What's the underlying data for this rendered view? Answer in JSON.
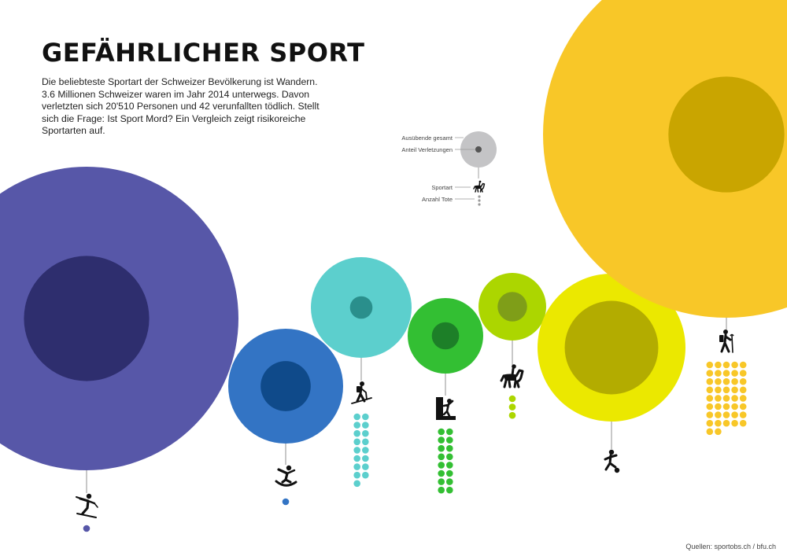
{
  "title": "GEFÄHRLICHER SPORT",
  "intro": "Die beliebteste Sportart der Schweizer Bevölkerung ist Wandern. 3.6 Millionen Schweizer waren im Jahr 2014 unterwegs. Davon verletzten sich 20'510 Personen und 42 verunfallten tödlich. Stellt sich die Frage: Ist Sport Mord? Ein Vergleich zeigt risikoreiche Sportarten auf.",
  "source": "Quellen: sportobs.ch / bfu.ch",
  "legend": {
    "participants": "Ausübende gesamt",
    "injuries": "Anteil Verletzungen",
    "sport": "Sportart",
    "deaths": "Anzahl Tote",
    "icon": "horse-riding-icon",
    "circle_color": "#c4c4c6",
    "inner_color": "#555555",
    "dot_color": "#9a9a9a"
  },
  "chart_data": {
    "type": "bubble",
    "encoding": {
      "outer_circle": "Ausübende gesamt",
      "inner_circle": "Anteil Verletzungen",
      "dots": "Anzahl Tote"
    },
    "series": [
      {
        "icon": "skiing-icon",
        "color": "#5757a8",
        "inner_color": "#2e2e6e",
        "participants_rel": 1.0,
        "injuries_rel": 0.17,
        "deaths": 1
      },
      {
        "icon": "snowboard-icon",
        "color": "#3374c4",
        "inner_color": "#0f4a8a",
        "participants_rel": 0.27,
        "injuries_rel": 0.19,
        "deaths": 1
      },
      {
        "icon": "ski-touring-icon",
        "color": "#5ccfcd",
        "inner_color": "#2a8f8c",
        "participants_rel": 0.21,
        "injuries_rel": 0.05,
        "deaths": 17
      },
      {
        "icon": "climbing-icon",
        "color": "#33bf33",
        "inner_color": "#1d7f28",
        "participants_rel": 0.12,
        "injuries_rel": 0.13,
        "deaths": 16
      },
      {
        "icon": "horse-riding-icon",
        "color": "#acd600",
        "inner_color": "#7f9e18",
        "participants_rel": 0.1,
        "injuries_rel": 0.19,
        "deaths": 3
      },
      {
        "icon": "football-icon",
        "color": "#ebe800",
        "inner_color": "#b3ac00",
        "participants_rel": 0.39,
        "injuries_rel": 0.4,
        "deaths": 0
      },
      {
        "icon": "hiking-icon",
        "color": "#f8c728",
        "inner_color": "#c9a500",
        "participants_rel": 1.0,
        "injuries_rel": 0.1,
        "deaths": 42
      }
    ]
  }
}
